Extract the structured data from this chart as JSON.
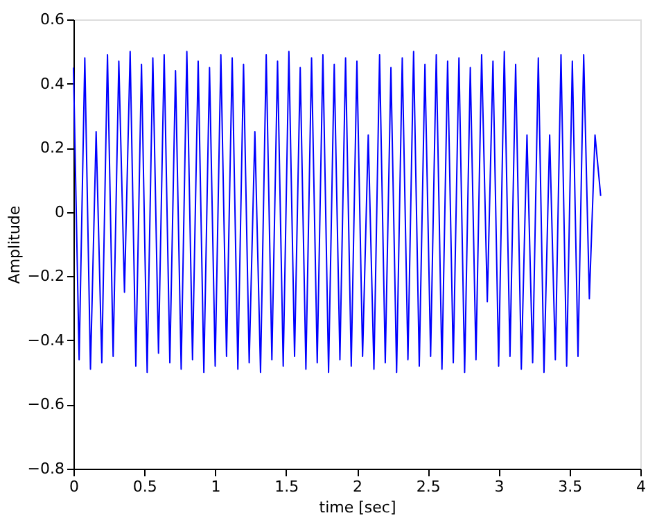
{
  "chart_data": {
    "type": "line",
    "xlabel": "time [sec]",
    "ylabel": "Amplitude",
    "x": [
      0,
      0.04,
      0.08,
      0.12,
      0.16,
      0.2,
      0.24,
      0.28,
      0.32,
      0.36,
      0.4,
      0.44,
      0.48,
      0.52,
      0.56,
      0.6,
      0.64,
      0.68,
      0.72,
      0.76,
      0.8,
      0.84,
      0.88,
      0.92,
      0.96,
      1.0,
      1.04,
      1.08,
      1.12,
      1.16,
      1.2,
      1.24,
      1.28,
      1.32,
      1.36,
      1.4,
      1.44,
      1.48,
      1.52,
      1.56,
      1.6,
      1.64,
      1.68,
      1.72,
      1.76,
      1.8,
      1.84,
      1.88,
      1.92,
      1.96,
      2.0,
      2.04,
      2.08,
      2.12,
      2.16,
      2.2,
      2.24,
      2.28,
      2.32,
      2.36,
      2.4,
      2.44,
      2.48,
      2.52,
      2.56,
      2.6,
      2.64,
      2.68,
      2.72,
      2.76,
      2.8,
      2.84,
      2.88,
      2.92,
      2.96,
      3.0,
      3.04,
      3.08,
      3.12,
      3.16,
      3.2,
      3.24,
      3.28,
      3.32,
      3.36,
      3.4,
      3.44,
      3.48,
      3.52,
      3.56,
      3.6,
      3.64,
      3.68,
      3.72
    ],
    "series": [
      {
        "color": "#0000ff",
        "values": [
          0.45,
          -0.46,
          0.48,
          -0.49,
          0.25,
          -0.47,
          0.49,
          -0.45,
          0.47,
          -0.25,
          0.5,
          -0.48,
          0.46,
          -0.5,
          0.48,
          -0.44,
          0.49,
          -0.47,
          0.44,
          -0.49,
          0.5,
          -0.46,
          0.47,
          -0.5,
          0.45,
          -0.48,
          0.49,
          -0.45,
          0.48,
          -0.49,
          0.46,
          -0.47,
          0.25,
          -0.5,
          0.49,
          -0.46,
          0.47,
          -0.48,
          0.5,
          -0.45,
          0.45,
          -0.49,
          0.48,
          -0.47,
          0.49,
          -0.5,
          0.46,
          -0.46,
          0.48,
          -0.48,
          0.47,
          -0.45,
          0.24,
          -0.49,
          0.49,
          -0.47,
          0.45,
          -0.5,
          0.48,
          -0.46,
          0.5,
          -0.48,
          0.46,
          -0.45,
          0.49,
          -0.49,
          0.47,
          -0.47,
          0.48,
          -0.5,
          0.45,
          -0.46,
          0.49,
          -0.28,
          0.47,
          -0.48,
          0.5,
          -0.45,
          0.46,
          -0.49,
          0.24,
          -0.47,
          0.48,
          -0.5,
          0.24,
          -0.46,
          0.49,
          -0.48,
          0.47,
          -0.45,
          0.49,
          -0.27,
          0.24,
          0.05
        ]
      }
    ],
    "xlim": [
      0,
      4
    ],
    "xticks": [
      0,
      0.5,
      1,
      1.5,
      2,
      2.5,
      3,
      3.5,
      4
    ],
    "ylim": [
      -0.8,
      0.6
    ],
    "yticks": [
      -0.8,
      -0.6,
      -0.4,
      -0.2,
      0,
      0.2,
      0.4,
      0.6
    ],
    "grid": false,
    "marker": "none",
    "line_style": "solid"
  }
}
